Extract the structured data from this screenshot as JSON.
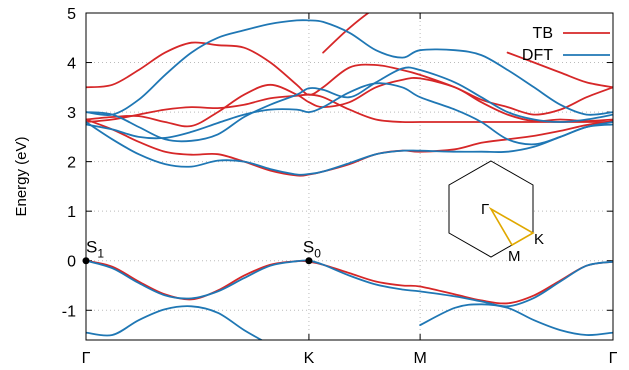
{
  "chart_data": {
    "type": "line",
    "ylabel": "Energy (eV)",
    "ylim": [
      -1.6,
      5
    ],
    "yticks": [
      -1,
      0,
      1,
      2,
      3,
      4,
      5
    ],
    "xlim": [
      0,
      1
    ],
    "xticks": [
      {
        "pos": 0.0,
        "label": "Γ"
      },
      {
        "pos": 0.423,
        "label": "K"
      },
      {
        "pos": 0.634,
        "label": "M"
      },
      {
        "pos": 1.0,
        "label": "Γ"
      }
    ],
    "grid": true,
    "legend": {
      "placement": "top-right"
    },
    "x": [
      0,
      0.05,
      0.1,
      0.15,
      0.2,
      0.25,
      0.3,
      0.35,
      0.4,
      0.423,
      0.45,
      0.5,
      0.55,
      0.6,
      0.634,
      0.7,
      0.75,
      0.8,
      0.85,
      0.9,
      0.95,
      1.0
    ],
    "series": [
      {
        "name": "TB",
        "color": "#d62728",
        "bands": [
          [
            0.0,
            -0.12,
            -0.42,
            -0.68,
            -0.78,
            -0.6,
            -0.3,
            -0.08,
            -0.01,
            -0.02,
            -0.08,
            -0.25,
            -0.42,
            -0.5,
            -0.52,
            -0.68,
            -0.8,
            -0.86,
            -0.7,
            -0.4,
            -0.1,
            -0.02
          ],
          [
            2.85,
            2.65,
            2.4,
            2.2,
            2.14,
            2.15,
            2.0,
            1.82,
            1.72,
            1.74,
            1.8,
            1.95,
            2.15,
            2.22,
            2.2,
            2.25,
            2.38,
            2.45,
            2.52,
            2.62,
            2.74,
            2.82
          ],
          [
            2.8,
            2.85,
            2.95,
            3.05,
            3.1,
            3.08,
            3.15,
            3.28,
            3.33,
            3.35,
            3.3,
            3.05,
            2.85,
            2.8,
            2.8,
            2.8,
            2.8,
            2.8,
            2.8,
            2.8,
            2.8,
            2.8
          ],
          [
            2.85,
            2.9,
            2.92,
            2.8,
            2.72,
            3.0,
            3.35,
            3.55,
            3.35,
            3.2,
            3.1,
            3.2,
            3.5,
            3.65,
            3.68,
            3.5,
            3.2,
            2.95,
            2.82,
            2.85,
            2.82,
            2.85
          ],
          [
            3.5,
            3.55,
            3.85,
            4.2,
            4.4,
            4.35,
            4.3,
            4.0,
            3.55,
            3.35,
            3.5,
            3.9,
            3.95,
            3.85,
            3.75,
            3.5,
            3.25,
            3.1,
            2.95,
            3.05,
            3.3,
            3.5
          ],
          [
            null,
            null,
            null,
            null,
            null,
            null,
            null,
            null,
            null,
            null,
            4.2,
            4.7,
            5.1,
            5.3,
            null,
            null,
            null,
            null,
            null,
            null,
            null,
            null
          ],
          [
            null,
            null,
            null,
            null,
            null,
            null,
            null,
            null,
            null,
            null,
            null,
            null,
            null,
            null,
            null,
            null,
            null,
            4.2,
            4.0,
            3.8,
            3.6,
            3.5
          ]
        ]
      },
      {
        "name": "DFT",
        "color": "#1f77b4",
        "bands": [
          [
            0.0,
            -0.15,
            -0.45,
            -0.7,
            -0.76,
            -0.62,
            -0.35,
            -0.1,
            -0.01,
            0.0,
            -0.08,
            -0.3,
            -0.48,
            -0.58,
            -0.62,
            -0.72,
            -0.82,
            -0.92,
            -0.75,
            -0.42,
            -0.1,
            -0.02
          ],
          [
            -1.45,
            -1.5,
            -1.2,
            -0.98,
            -0.92,
            -1.05,
            -1.4,
            -1.7,
            null,
            null,
            null,
            null,
            null,
            null,
            -1.3,
            -0.95,
            -0.88,
            -0.95,
            -1.2,
            -1.4,
            -1.5,
            -1.45
          ],
          [
            2.8,
            2.45,
            2.15,
            1.95,
            1.9,
            2.02,
            2.0,
            1.85,
            1.74,
            1.75,
            1.8,
            1.97,
            2.15,
            2.22,
            2.22,
            2.2,
            2.2,
            2.2,
            2.3,
            2.5,
            2.7,
            2.8
          ],
          [
            2.75,
            2.65,
            2.5,
            2.48,
            2.6,
            2.78,
            2.95,
            3.05,
            3.05,
            3.0,
            3.1,
            3.4,
            3.58,
            3.5,
            3.3,
            3.05,
            2.8,
            2.45,
            2.35,
            2.5,
            2.7,
            2.75
          ],
          [
            3.0,
            2.95,
            2.7,
            2.45,
            2.42,
            2.55,
            2.9,
            3.15,
            3.35,
            3.48,
            3.45,
            3.3,
            3.6,
            3.88,
            3.85,
            3.6,
            3.3,
            3.0,
            2.85,
            2.8,
            2.85,
            2.95
          ],
          [
            3.0,
            2.95,
            3.25,
            3.75,
            4.2,
            4.5,
            4.65,
            4.78,
            4.85,
            4.85,
            4.82,
            4.6,
            4.25,
            4.1,
            4.25,
            4.25,
            4.15,
            3.85,
            3.5,
            3.15,
            2.95,
            3.0
          ]
        ]
      }
    ],
    "annotations": {
      "s1": {
        "x": 0.0,
        "y": 0.0,
        "label": "S",
        "sub": "1"
      },
      "s0": {
        "x": 0.423,
        "y": 0.0,
        "label": "S",
        "sub": "0"
      }
    },
    "brillouin_zone": {
      "labels": {
        "gamma": "Γ",
        "k": "K",
        "m": "M"
      },
      "path_color": "#e0a800"
    }
  }
}
